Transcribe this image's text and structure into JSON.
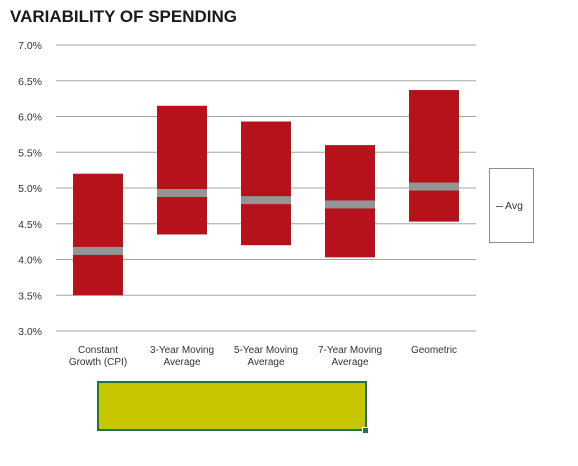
{
  "chart_data": {
    "type": "floating-bar",
    "title": "VARIABILITY OF SPENDING",
    "categories": [
      [
        "Constant",
        "Growth (CPI)"
      ],
      [
        "3-Year Moving",
        "Average"
      ],
      [
        "5-Year Moving",
        "Average"
      ],
      [
        "7-Year Moving",
        "Average"
      ],
      [
        "Geometric"
      ]
    ],
    "low": [
      3.5,
      4.35,
      4.2,
      4.03,
      4.53
    ],
    "high": [
      5.2,
      6.15,
      5.93,
      5.6,
      6.37
    ],
    "avg": [
      4.12,
      4.93,
      4.83,
      4.77,
      5.02
    ],
    "y_ticks": [
      "3.0%",
      "3.5%",
      "4.0%",
      "4.5%",
      "5.0%",
      "5.5%",
      "6.0%",
      "6.5%",
      "7.0%"
    ],
    "ylim": [
      3.0,
      7.0
    ],
    "grid": true,
    "legend": {
      "position": "right",
      "entries": [
        "Avg"
      ]
    },
    "colors": {
      "bar": "#b5121b",
      "avg": "#959595",
      "grid": "#a6a6a6"
    }
  }
}
